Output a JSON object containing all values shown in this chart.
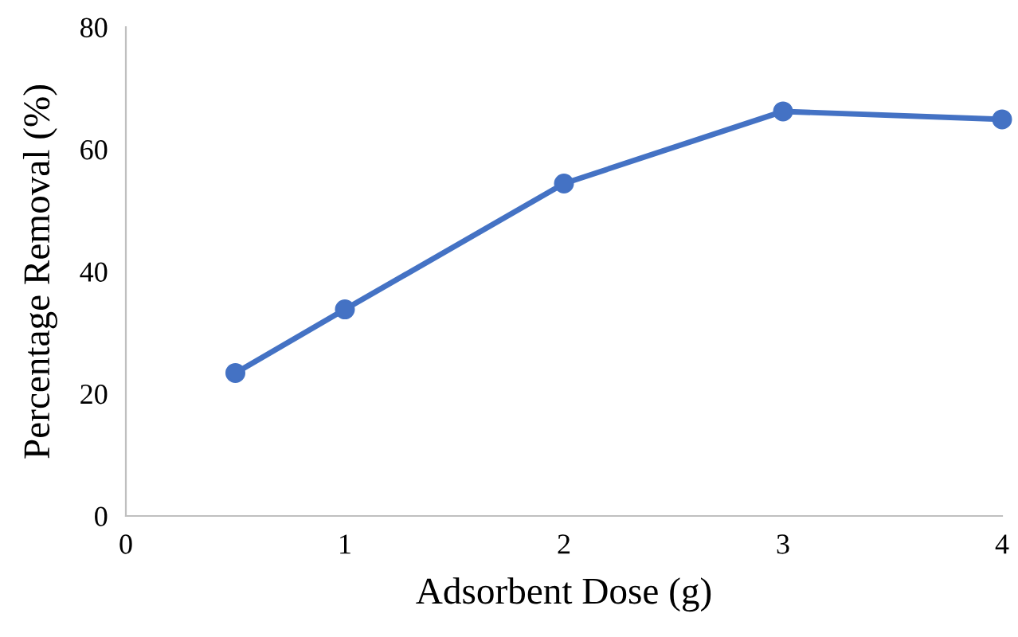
{
  "chart_data": {
    "type": "line",
    "xlabel": "Adsorbent Dose (g)",
    "ylabel": "Percentage Removal (%)",
    "series": [
      {
        "color": "#4472c4",
        "x": [
          0.5,
          1,
          2,
          3,
          4
        ],
        "values": [
          23.4,
          33.8,
          54.4,
          66.2,
          64.9
        ]
      }
    ],
    "xlim": [
      0,
      4
    ],
    "xticks": [
      0,
      1,
      2,
      3,
      4
    ],
    "ylim": [
      0,
      80
    ],
    "yticks": [
      0,
      20,
      40,
      60,
      80
    ],
    "marker": "circle",
    "line_style": "solid",
    "grid": false,
    "legend": false
  }
}
